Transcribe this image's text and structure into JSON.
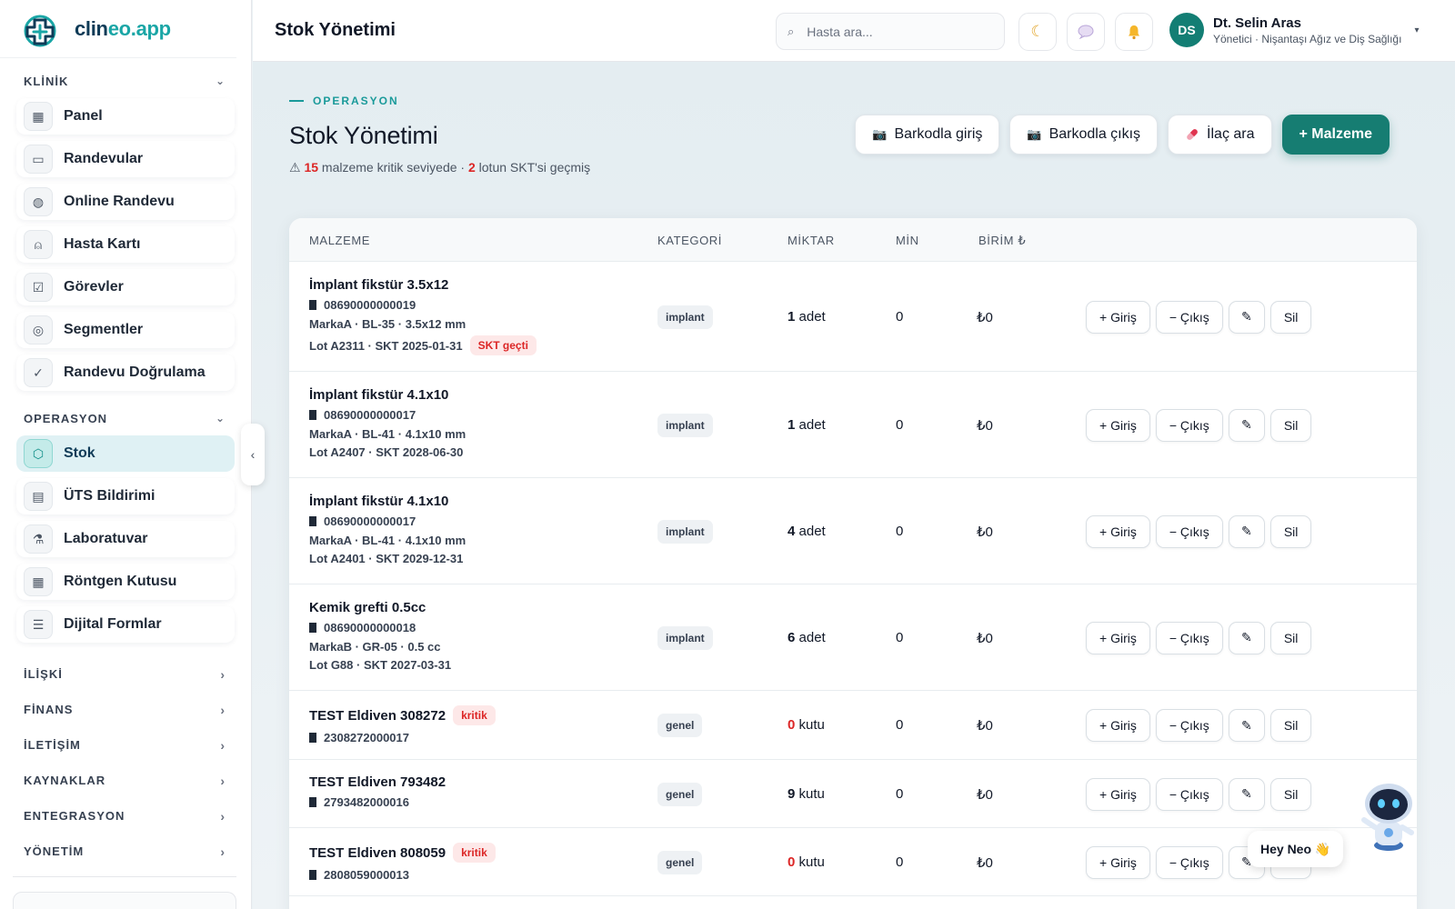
{
  "app": {
    "logo_main": "clin",
    "logo_accent": "eo.app",
    "logo_suffix": ""
  },
  "sidebar": {
    "groups": [
      {
        "label": "KLİNİK",
        "expanded": true,
        "items": [
          {
            "label": "Panel",
            "icon": "grid-icon"
          },
          {
            "label": "Randevular",
            "icon": "calendar-icon"
          },
          {
            "label": "Online Randevu",
            "icon": "globe-icon"
          },
          {
            "label": "Hasta Kartı",
            "icon": "user-icon"
          },
          {
            "label": "Görevler",
            "icon": "checkbox-icon"
          },
          {
            "label": "Segmentler",
            "icon": "target-icon"
          },
          {
            "label": "Randevu Doğrulama",
            "icon": "check-circle-icon"
          }
        ]
      },
      {
        "label": "OPERASYON",
        "expanded": true,
        "items": [
          {
            "label": "Stok",
            "icon": "box-icon",
            "active": true
          },
          {
            "label": "ÜTS Bildirimi",
            "icon": "document-icon"
          },
          {
            "label": "Laboratuvar",
            "icon": "flask-icon"
          },
          {
            "label": "Röntgen Kutusu",
            "icon": "table-icon"
          },
          {
            "label": "Dijital Formlar",
            "icon": "form-icon"
          }
        ]
      }
    ],
    "collapsed_groups": [
      "İLİŞKİ",
      "FİNANS",
      "İLETİŞİM",
      "KAYNAKLAR",
      "ENTEGRASYON",
      "YÖNETİM"
    ]
  },
  "topbar": {
    "title": "Stok Yönetimi",
    "search_placeholder": "Hasta ara...",
    "user_initials": "DS",
    "user_name": "Dt. Selin Aras",
    "user_role": "Yönetici · Nişantaşı Ağız ve Diş Sağlığı"
  },
  "page": {
    "eyebrow": "OPERASYON",
    "title": "Stok Yönetimi",
    "summary_icon": "⚠",
    "summary_critical_count": "15",
    "summary_mid": " malzeme kritik seviyede · ",
    "summary_expired_count": "2",
    "summary_end": " lotun SKT'si geçmiş",
    "actions": {
      "barcode_in": "Barkodla giriş",
      "barcode_out": "Barkodla çıkış",
      "drug_search": "İlaç ara",
      "add_item": "+ Malzeme"
    }
  },
  "table": {
    "headers": {
      "item": "MALZEME",
      "category": "KATEGORİ",
      "quantity": "MİKTAR",
      "min": "MİN",
      "unit_price": "BİRİM ₺"
    },
    "row_actions": {
      "in": "+ Giriş",
      "out": "− Çıkış",
      "edit_icon": "✎",
      "delete": "Sil"
    },
    "rows": [
      {
        "name": "İmplant fikstür 3.5x12",
        "badge": "",
        "code": "08690000000019",
        "brand": "MarkaA · BL-35 · 3.5x12 mm",
        "lot": "Lot A2311 · SKT 2025-01-31",
        "lot_badge": "SKT geçti",
        "category": "implant",
        "qty": "1",
        "unit": "adet",
        "min": "0",
        "price": "₺0"
      },
      {
        "name": "İmplant fikstür 4.1x10",
        "badge": "",
        "code": "08690000000017",
        "brand": "MarkaA · BL-41 · 4.1x10 mm",
        "lot": "Lot A2407 · SKT 2028-06-30",
        "lot_badge": "",
        "category": "implant",
        "qty": "1",
        "unit": "adet",
        "min": "0",
        "price": "₺0"
      },
      {
        "name": "İmplant fikstür 4.1x10",
        "badge": "",
        "code": "08690000000017",
        "brand": "MarkaA · BL-41 · 4.1x10 mm",
        "lot": "Lot A2401 · SKT 2029-12-31",
        "lot_badge": "",
        "category": "implant",
        "qty": "4",
        "unit": "adet",
        "min": "0",
        "price": "₺0"
      },
      {
        "name": "Kemik grefti 0.5cc",
        "badge": "",
        "code": "08690000000018",
        "brand": "MarkaB · GR-05 · 0.5 cc",
        "lot": "Lot G88 · SKT 2027-03-31",
        "lot_badge": "",
        "category": "implant",
        "qty": "6",
        "unit": "adet",
        "min": "0",
        "price": "₺0"
      },
      {
        "name": "TEST Eldiven 308272",
        "badge": "kritik",
        "code": "2308272000017",
        "brand": "",
        "lot": "",
        "lot_badge": "",
        "category": "genel",
        "qty": "0",
        "unit": "kutu",
        "min": "0",
        "price": "₺0"
      },
      {
        "name": "TEST Eldiven 793482",
        "badge": "",
        "code": "2793482000016",
        "brand": "",
        "lot": "",
        "lot_badge": "",
        "category": "genel",
        "qty": "9",
        "unit": "kutu",
        "min": "0",
        "price": "₺0"
      },
      {
        "name": "TEST Eldiven 808059",
        "badge": "kritik",
        "code": "2808059000013",
        "brand": "",
        "lot": "",
        "lot_badge": "",
        "category": "genel",
        "qty": "0",
        "unit": "kutu",
        "min": "0",
        "price": "₺0"
      }
    ]
  },
  "assistant": {
    "bubble": "Hey Neo 👋"
  },
  "colors": {
    "accent": "#167d72",
    "teal": "#1aa6a6",
    "danger": "#dc2626"
  }
}
